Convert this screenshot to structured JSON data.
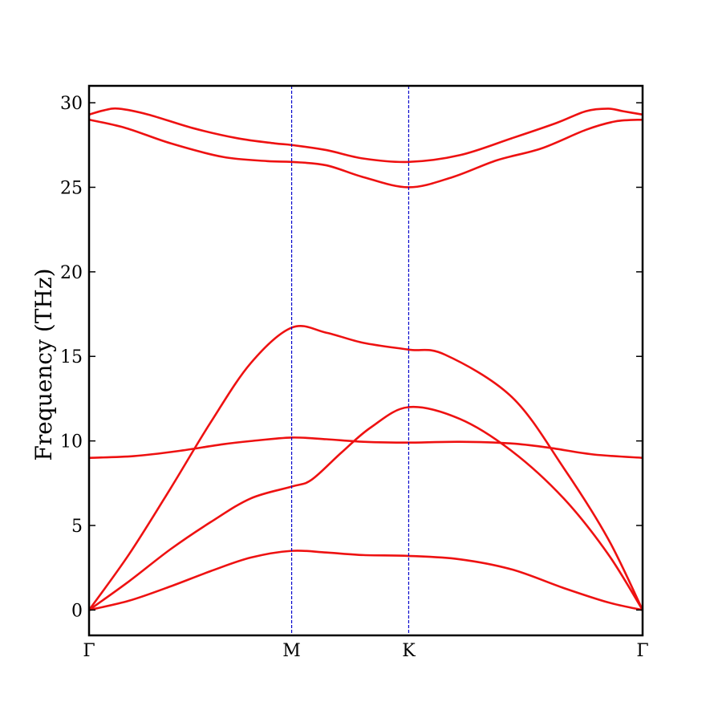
{
  "chart_data": {
    "type": "line",
    "ylabel": "Frequency (THz)",
    "xlabel": "",
    "ylim": [
      -1.5,
      31.0
    ],
    "xlim": [
      0,
      3.732
    ],
    "yticks": [
      0,
      5,
      10,
      15,
      20,
      25,
      30
    ],
    "high_symmetry_points": [
      {
        "label": "Γ",
        "x": 0
      },
      {
        "label": "M",
        "x": 1.366
      },
      {
        "label": "K",
        "x": 2.155
      },
      {
        "label": "Γ",
        "x": 3.732
      }
    ],
    "vertical_lines_at": [
      1.366,
      2.155
    ],
    "grid": false,
    "series": [
      {
        "points": [
          [
            0,
            0
          ],
          [
            0.27,
            0.55
          ],
          [
            0.55,
            1.4
          ],
          [
            0.82,
            2.3
          ],
          [
            1.09,
            3.1
          ],
          [
            1.366,
            3.5
          ],
          [
            1.6,
            3.4
          ],
          [
            1.85,
            3.25
          ],
          [
            2.155,
            3.2
          ],
          [
            2.5,
            3.0
          ],
          [
            2.85,
            2.4
          ],
          [
            3.2,
            1.3
          ],
          [
            3.5,
            0.45
          ],
          [
            3.732,
            0
          ]
        ]
      },
      {
        "points": [
          [
            0,
            0
          ],
          [
            0.27,
            1.7
          ],
          [
            0.55,
            3.6
          ],
          [
            0.82,
            5.2
          ],
          [
            1.09,
            6.6
          ],
          [
            1.366,
            7.3
          ],
          [
            1.5,
            7.7
          ],
          [
            1.7,
            9.3
          ],
          [
            1.9,
            10.8
          ],
          [
            2.155,
            12.0
          ],
          [
            2.5,
            11.3
          ],
          [
            2.85,
            9.4
          ],
          [
            3.2,
            6.6
          ],
          [
            3.5,
            3.3
          ],
          [
            3.732,
            0
          ]
        ]
      },
      {
        "points": [
          [
            0,
            0
          ],
          [
            0.27,
            3.3
          ],
          [
            0.55,
            7.2
          ],
          [
            0.82,
            11.1
          ],
          [
            1.09,
            14.6
          ],
          [
            1.366,
            16.7
          ],
          [
            1.6,
            16.4
          ],
          [
            1.85,
            15.8
          ],
          [
            2.155,
            15.4
          ],
          [
            2.4,
            15.1
          ],
          [
            2.85,
            12.6
          ],
          [
            3.2,
            8.4
          ],
          [
            3.5,
            4.2
          ],
          [
            3.732,
            0
          ]
        ]
      },
      {
        "points": [
          [
            0,
            9.0
          ],
          [
            0.3,
            9.1
          ],
          [
            0.6,
            9.4
          ],
          [
            0.9,
            9.8
          ],
          [
            1.1,
            10.0
          ],
          [
            1.366,
            10.2
          ],
          [
            1.6,
            10.1
          ],
          [
            1.85,
            9.95
          ],
          [
            2.155,
            9.9
          ],
          [
            2.5,
            9.95
          ],
          [
            2.85,
            9.85
          ],
          [
            3.1,
            9.6
          ],
          [
            3.4,
            9.2
          ],
          [
            3.732,
            9.0
          ]
        ]
      },
      {
        "points": [
          [
            0,
            29.0
          ],
          [
            0.25,
            28.5
          ],
          [
            0.55,
            27.6
          ],
          [
            0.9,
            26.8
          ],
          [
            1.2,
            26.55
          ],
          [
            1.366,
            26.5
          ],
          [
            1.6,
            26.3
          ],
          [
            1.85,
            25.6
          ],
          [
            2.155,
            25.0
          ],
          [
            2.45,
            25.6
          ],
          [
            2.75,
            26.6
          ],
          [
            3.05,
            27.3
          ],
          [
            3.35,
            28.4
          ],
          [
            3.55,
            28.9
          ],
          [
            3.732,
            29.0
          ]
        ]
      },
      {
        "points": [
          [
            0,
            29.3
          ],
          [
            0.1,
            29.55
          ],
          [
            0.2,
            29.65
          ],
          [
            0.4,
            29.3
          ],
          [
            0.7,
            28.5
          ],
          [
            1.0,
            27.9
          ],
          [
            1.25,
            27.6
          ],
          [
            1.366,
            27.5
          ],
          [
            1.6,
            27.2
          ],
          [
            1.85,
            26.7
          ],
          [
            2.155,
            26.5
          ],
          [
            2.5,
            26.9
          ],
          [
            2.85,
            27.9
          ],
          [
            3.15,
            28.8
          ],
          [
            3.35,
            29.5
          ],
          [
            3.5,
            29.65
          ],
          [
            3.6,
            29.5
          ],
          [
            3.732,
            29.3
          ]
        ]
      }
    ],
    "colors": {
      "bands": "#ee1111",
      "vertical_lines": "#0000cc",
      "frame": "#000000"
    }
  }
}
